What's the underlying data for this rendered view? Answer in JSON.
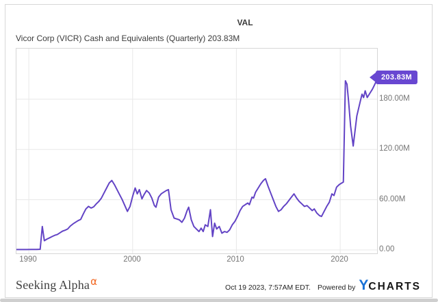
{
  "header": {
    "column_label": "VAL",
    "series_label": "Vicor Corp (VICR) Cash and Equivalents (Quarterly) 203.83M"
  },
  "badge": {
    "label": "203.83M",
    "color": "#6847d1"
  },
  "footer": {
    "brand_text": "Seeking Alpha",
    "brand_alpha": "α",
    "timestamp": "Oct 19 2023, 7:57AM EDT.",
    "powered_by": "Powered by",
    "ycharts_y": "Y",
    "ycharts_charts": "CHARTS"
  },
  "chart_data": {
    "type": "line",
    "title": "VAL",
    "series_name": "Vicor Corp (VICR) Cash and Equivalents (Quarterly)",
    "latest_value_label": "203.83M",
    "units": "USD, values in millions",
    "legend_position": "none",
    "grid": true,
    "line_color": "#6243c5",
    "grid_color": "#e8e8e8",
    "x_domain": [
      1988.81,
      2023.55
    ],
    "y_domain": [
      -4.1,
      240.4
    ],
    "x_ticks": [
      {
        "label": "1990",
        "year": 1990
      },
      {
        "label": "2000",
        "year": 2000
      },
      {
        "label": "2010",
        "year": 2010
      },
      {
        "label": "2020",
        "year": 2020
      }
    ],
    "y_ticks": [
      {
        "label": "180.00M",
        "value": 180
      },
      {
        "label": "120.00M",
        "value": 120
      },
      {
        "label": "60.00M",
        "value": 60
      },
      {
        "label": "0.00",
        "value": 0
      }
    ],
    "points": [
      [
        1988.81,
        0.5
      ],
      [
        1989.25,
        0.5
      ],
      [
        1989.75,
        0.5
      ],
      [
        1990.25,
        0.6
      ],
      [
        1990.75,
        0.6
      ],
      [
        1991.1,
        0.8
      ],
      [
        1991.3,
        28
      ],
      [
        1991.5,
        11
      ],
      [
        1991.75,
        13
      ],
      [
        1992.0,
        14.5
      ],
      [
        1992.25,
        16
      ],
      [
        1992.5,
        17.5
      ],
      [
        1992.75,
        18.5
      ],
      [
        1993.0,
        20.5
      ],
      [
        1993.25,
        22.5
      ],
      [
        1993.5,
        23.5
      ],
      [
        1993.75,
        25
      ],
      [
        1994.0,
        28.5
      ],
      [
        1994.25,
        31
      ],
      [
        1994.5,
        33
      ],
      [
        1994.75,
        35
      ],
      [
        1995.0,
        36.5
      ],
      [
        1995.25,
        43
      ],
      [
        1995.5,
        49
      ],
      [
        1995.75,
        52
      ],
      [
        1996.0,
        50
      ],
      [
        1996.25,
        51.5
      ],
      [
        1996.5,
        55
      ],
      [
        1996.75,
        58
      ],
      [
        1997.0,
        62
      ],
      [
        1997.25,
        68
      ],
      [
        1997.5,
        74
      ],
      [
        1997.75,
        80
      ],
      [
        1998.0,
        83
      ],
      [
        1998.25,
        78
      ],
      [
        1998.5,
        72
      ],
      [
        1998.75,
        66
      ],
      [
        1999.0,
        60
      ],
      [
        1999.25,
        53
      ],
      [
        1999.5,
        46
      ],
      [
        1999.75,
        52
      ],
      [
        2000.0,
        64
      ],
      [
        2000.25,
        74
      ],
      [
        2000.45,
        67
      ],
      [
        2000.65,
        72
      ],
      [
        2000.9,
        61
      ],
      [
        2001.1,
        66
      ],
      [
        2001.35,
        71
      ],
      [
        2001.6,
        68
      ],
      [
        2001.85,
        62
      ],
      [
        2002.1,
        53
      ],
      [
        2002.25,
        51
      ],
      [
        2002.5,
        63
      ],
      [
        2002.75,
        67
      ],
      [
        2003.0,
        69
      ],
      [
        2003.25,
        71
      ],
      [
        2003.45,
        72
      ],
      [
        2003.7,
        48
      ],
      [
        2004.0,
        38
      ],
      [
        2004.25,
        37
      ],
      [
        2004.5,
        36
      ],
      [
        2004.75,
        33
      ],
      [
        2005.0,
        38
      ],
      [
        2005.25,
        47
      ],
      [
        2005.4,
        51
      ],
      [
        2005.65,
        36
      ],
      [
        2005.9,
        28
      ],
      [
        2006.15,
        25
      ],
      [
        2006.4,
        22
      ],
      [
        2006.6,
        26
      ],
      [
        2006.8,
        22
      ],
      [
        2007.0,
        30
      ],
      [
        2007.25,
        28
      ],
      [
        2007.5,
        48
      ],
      [
        2007.7,
        16
      ],
      [
        2007.9,
        32
      ],
      [
        2008.1,
        25
      ],
      [
        2008.35,
        28
      ],
      [
        2008.6,
        20
      ],
      [
        2008.85,
        22
      ],
      [
        2009.1,
        21
      ],
      [
        2009.35,
        24
      ],
      [
        2009.6,
        30
      ],
      [
        2009.85,
        34
      ],
      [
        2010.1,
        40
      ],
      [
        2010.35,
        47
      ],
      [
        2010.6,
        52
      ],
      [
        2010.85,
        54
      ],
      [
        2011.1,
        56
      ],
      [
        2011.25,
        54
      ],
      [
        2011.5,
        63
      ],
      [
        2011.65,
        62
      ],
      [
        2011.85,
        69
      ],
      [
        2012.1,
        74
      ],
      [
        2012.35,
        79
      ],
      [
        2012.6,
        83
      ],
      [
        2012.8,
        85
      ],
      [
        2013.05,
        76
      ],
      [
        2013.3,
        68
      ],
      [
        2013.55,
        60
      ],
      [
        2013.8,
        52
      ],
      [
        2014.05,
        46
      ],
      [
        2014.3,
        48
      ],
      [
        2014.55,
        52
      ],
      [
        2014.8,
        55
      ],
      [
        2015.05,
        59
      ],
      [
        2015.3,
        63
      ],
      [
        2015.55,
        67
      ],
      [
        2015.8,
        62
      ],
      [
        2016.05,
        58
      ],
      [
        2016.3,
        55
      ],
      [
        2016.55,
        52
      ],
      [
        2016.8,
        53
      ],
      [
        2017.05,
        50
      ],
      [
        2017.3,
        47
      ],
      [
        2017.5,
        49
      ],
      [
        2017.75,
        44
      ],
      [
        2018.0,
        41
      ],
      [
        2018.2,
        40
      ],
      [
        2018.45,
        46
      ],
      [
        2018.7,
        52
      ],
      [
        2018.95,
        57
      ],
      [
        2019.2,
        67
      ],
      [
        2019.4,
        65
      ],
      [
        2019.65,
        75
      ],
      [
        2019.9,
        78
      ],
      [
        2020.15,
        80
      ],
      [
        2020.3,
        81
      ],
      [
        2020.5,
        202
      ],
      [
        2020.65,
        198
      ],
      [
        2020.8,
        178
      ],
      [
        2021.0,
        148
      ],
      [
        2021.25,
        124
      ],
      [
        2021.6,
        160
      ],
      [
        2021.9,
        176
      ],
      [
        2022.1,
        186
      ],
      [
        2022.25,
        182
      ],
      [
        2022.4,
        190
      ],
      [
        2022.6,
        182
      ],
      [
        2022.9,
        188
      ],
      [
        2023.1,
        192
      ],
      [
        2023.3,
        197
      ],
      [
        2023.55,
        203.83
      ]
    ]
  }
}
